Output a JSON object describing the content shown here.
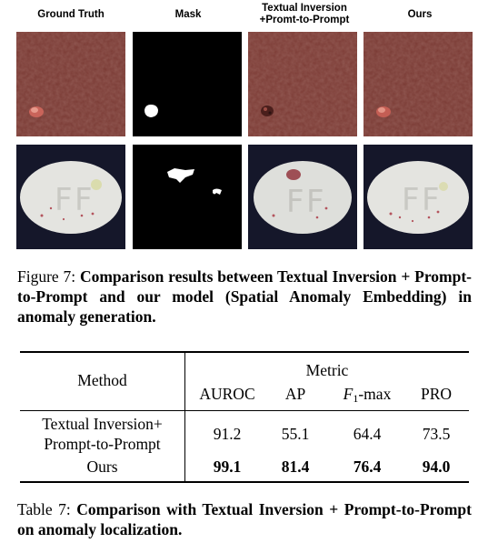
{
  "figure": {
    "column_headers": [
      "Ground Truth",
      "Mask",
      "Textual Inversion\n+Promt-to-Prompt",
      "Ours"
    ],
    "caption_label": "Figure 7:",
    "caption_text": "Comparison results between Textual Inversion + Prompt-to-Prompt and our model (Spatial Anomaly Embedding) in anomaly generation."
  },
  "table": {
    "method_header": "Method",
    "metric_header": "Metric",
    "metric_columns": {
      "auroc": "AUROC",
      "ap": "AP",
      "f1_base": "F",
      "f1_sub": "1",
      "f1_suffix": "-max",
      "pro": "PRO"
    },
    "rows": [
      {
        "method_line1": "Textual Inversion+",
        "method_line2": "Prompt-to-Prompt",
        "auroc": "91.2",
        "ap": "55.1",
        "f1max": "64.4",
        "pro": "73.5"
      },
      {
        "method": "Ours",
        "auroc": "99.1",
        "ap": "81.4",
        "f1max": "76.4",
        "pro": "94.0"
      }
    ],
    "caption_label": "Table 7:",
    "caption_text": "Comparison with Textual Inversion + Prompt-to-Prompt on anomaly localization."
  },
  "colors": {
    "leather": "#7a3a34",
    "leather_dark": "#5e2a26",
    "pill_bg": "#15172a",
    "pill": "#e4e4e0",
    "anomaly_red": "#c7554a",
    "mask_bg": "#000000",
    "mask_fg": "#ffffff"
  }
}
